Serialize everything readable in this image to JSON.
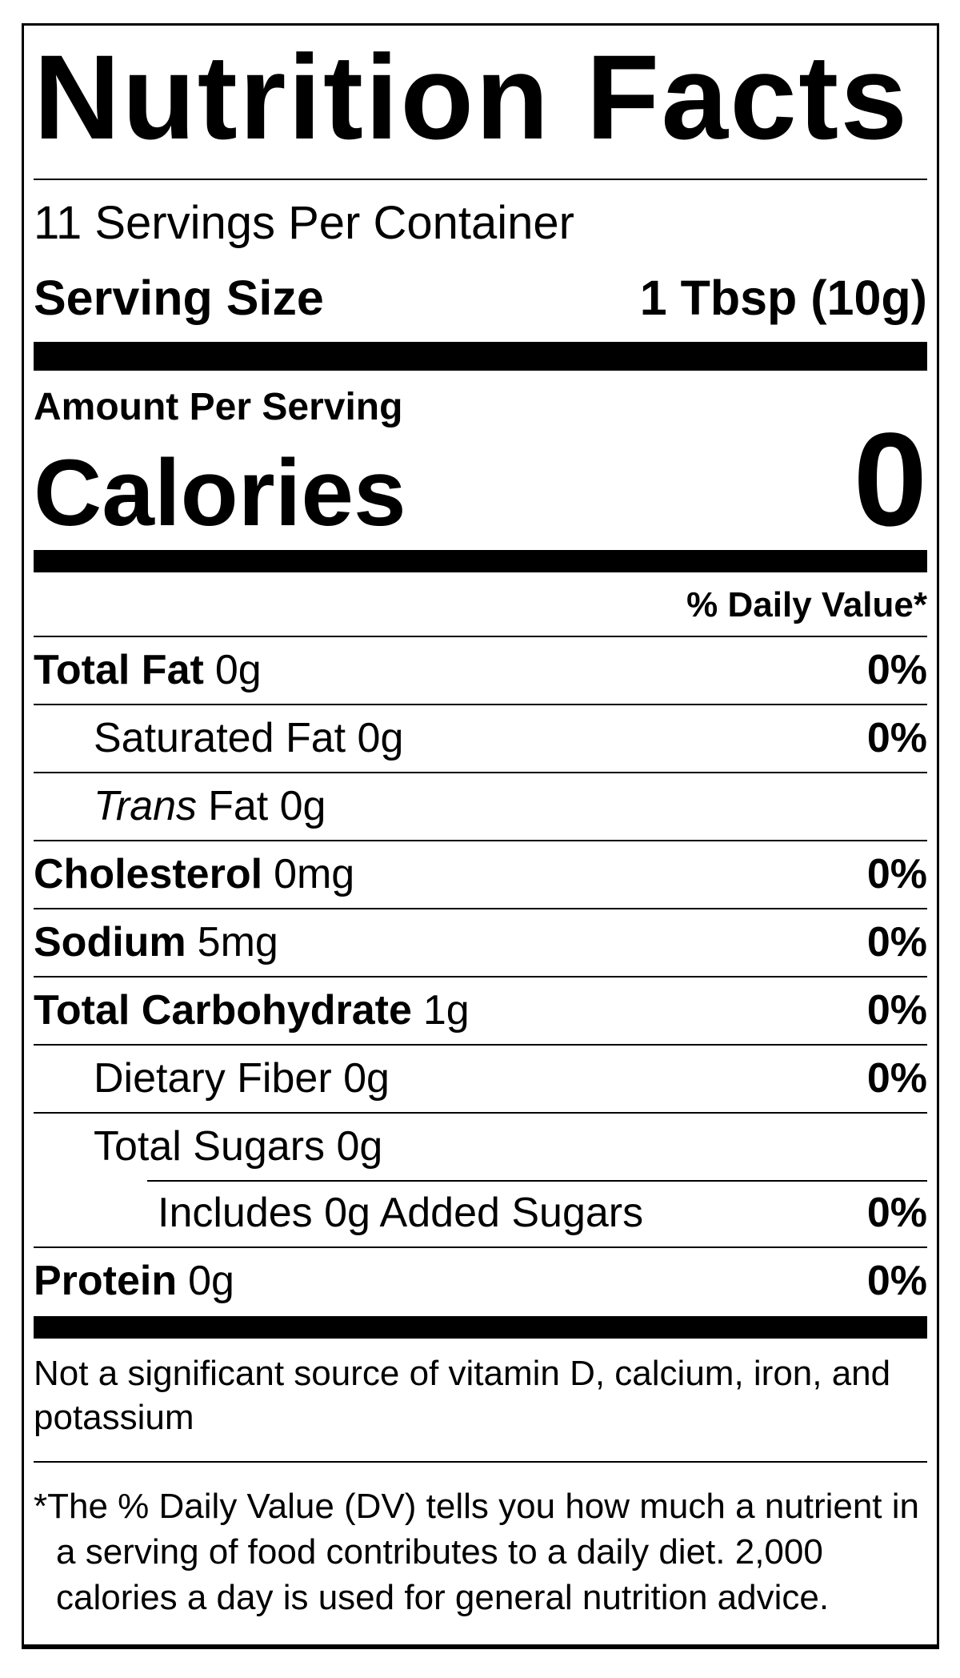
{
  "colors": {
    "text": "#000000",
    "background": "#ffffff",
    "rule": "#000000"
  },
  "label": {
    "title": "Nutrition Facts",
    "servings_per_container": "11 Servings Per Container",
    "serving_size": {
      "label": "Serving Size",
      "value": "1 Tbsp (10g)"
    },
    "amount_per_serving": "Amount Per Serving",
    "calories": {
      "label": "Calories",
      "value": "0"
    },
    "daily_value_header": "% Daily Value*",
    "rows": [
      {
        "label": "Total Fat",
        "rest": "0g",
        "dv": "0%"
      },
      {
        "label": "",
        "rest": "Saturated Fat 0g",
        "dv": "0%"
      },
      {
        "label": "Trans",
        "rest": "Fat 0g",
        "dv": ""
      },
      {
        "label": "Cholesterol",
        "rest": "0mg",
        "dv": "0%"
      },
      {
        "label": "Sodium",
        "rest": "5mg",
        "dv": "0%"
      },
      {
        "label": "Total Carbohydrate",
        "rest": "1g",
        "dv": "0%"
      },
      {
        "label": "",
        "rest": "Dietary Fiber 0g",
        "dv": "0%"
      },
      {
        "label": "",
        "rest": "Total Sugars 0g",
        "dv": ""
      },
      {
        "label": "",
        "rest": "Includes 0g Added Sugars",
        "dv": "0%"
      },
      {
        "label": "Protein",
        "rest": "0g",
        "dv": "0%"
      }
    ],
    "not_significant_note": "Not a significant source of vitamin D, calcium, iron, and potassium",
    "footnote": {
      "marker": "*",
      "text": "The % Daily Value (DV) tells you how much a nutrient in a serving of food contributes to a daily diet. 2,000 calories a day is used for general nutrition advice."
    }
  }
}
